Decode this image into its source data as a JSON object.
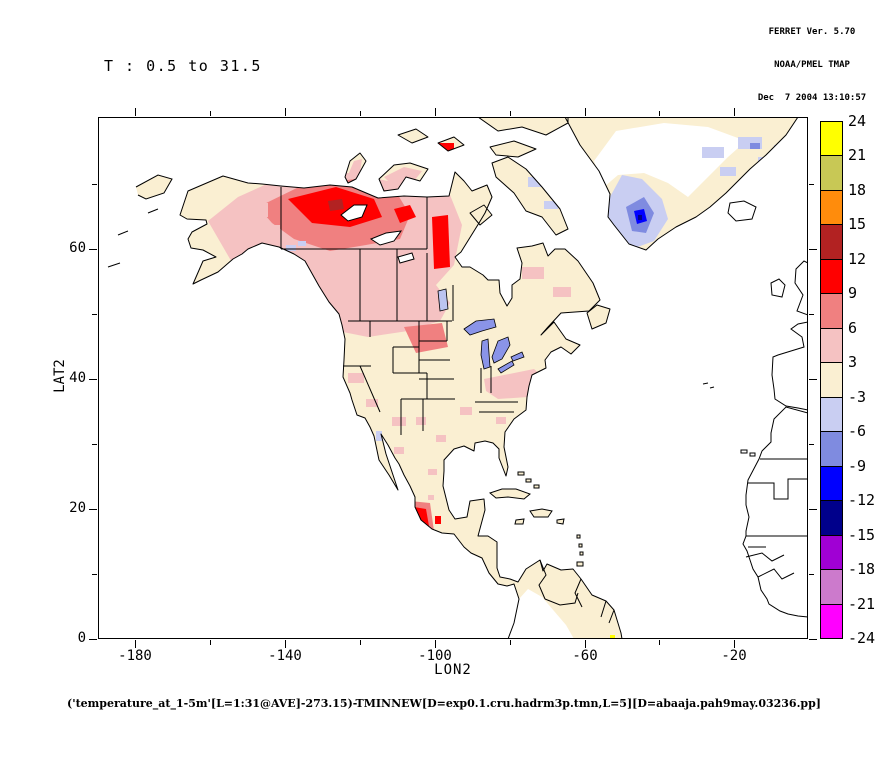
{
  "header": {
    "line1": "FERRET Ver. 5.70",
    "line2": "NOAA/PMEL TMAP",
    "line3": "Dec  7 2004 13:10:57"
  },
  "title": "T : 0.5 to 31.5",
  "axes": {
    "x_label": "LON2",
    "y_label": "LAT2",
    "x_range": [
      -190,
      -0.3
    ],
    "y_range": [
      0,
      80.3
    ],
    "x_major": [
      {
        "v": -180,
        "label": "-180"
      },
      {
        "v": -140,
        "label": "-140"
      },
      {
        "v": -100,
        "label": "-100"
      },
      {
        "v": -60,
        "label": "-60"
      },
      {
        "v": -20,
        "label": "-20"
      }
    ],
    "x_minor": [
      -160,
      -120,
      -80,
      -40
    ],
    "y_major": [
      {
        "v": 60,
        "label": "60"
      },
      {
        "v": 40,
        "label": "40"
      },
      {
        "v": 20,
        "label": "20"
      },
      {
        "v": 0,
        "label": "0"
      }
    ],
    "y_minor": [
      10,
      30,
      50,
      70
    ]
  },
  "colorbar": {
    "labels": [
      "24",
      "21",
      "18",
      "15",
      "12",
      "9",
      "6",
      "3",
      "-3",
      "-6",
      "-9",
      "-12",
      "-15",
      "-18",
      "-21",
      "-24"
    ],
    "colors": [
      "#FFFF00",
      "#C8C855",
      "#FF8C0C",
      "#B22222",
      "#FF0000",
      "#F08080",
      "#F5C2C2",
      "#FAEFD2",
      "#C9CEF2",
      "#7F8BE0",
      "#0000FF",
      "#00008B",
      "#A000D4",
      "#CC7ACC",
      "#FF00FF"
    ]
  },
  "caption": "('temperature_at_1-5m'[L=1:31@AVE]-273.15)-TMINNEW[D=exp0.1.cru.hadrm3p.tmn,L=5][D=abaaja.pah9may.03236.pp]",
  "colors": {
    "land_no_anomaly": "#FAEFD2",
    "ocean_no_data": "#FFFFFF",
    "lakes": "#8A94E8",
    "warm_3_6": "#F5C2C2",
    "warm_6_9": "#F08080",
    "warm_9_12": "#FF0000",
    "warm_12_15": "#B22222",
    "cold_3_6": "#C9CEF2",
    "cold_6_9": "#7F8BE0",
    "cold_9_12": "#0000FF",
    "cold_12_15": "#00008B"
  },
  "chart_data": {
    "type": "heatmap",
    "title": "T : 0.5 to 31.5",
    "xlabel": "LON2",
    "ylabel": "LAT2",
    "xlim": [
      -190,
      0
    ],
    "ylim": [
      0,
      80
    ],
    "x_ticks": [
      -180,
      -140,
      -100,
      -60,
      -20
    ],
    "y_ticks": [
      0,
      20,
      40,
      60
    ],
    "legend_position": "right colorbar",
    "colorbar_levels": [
      -24,
      -21,
      -18,
      -15,
      -12,
      -9,
      -6,
      -3,
      3,
      6,
      9,
      12,
      15,
      18,
      21,
      24
    ],
    "colorbar_colors_bottom_to_top": [
      "#FF00FF",
      "#CC7ACC",
      "#A000D4",
      "#00008B",
      "#0000FF",
      "#7F8BE0",
      "#C9CEF2",
      "#FAEFD2",
      "#F5C2C2",
      "#F08080",
      "#FF0000",
      "#B22222",
      "#FF8C0C",
      "#C8C855",
      "#FFFF00"
    ],
    "regions": [
      {
        "region": "Northwest Territories around Great Bear Lake, Canada",
        "approx_value": "+9 to +12"
      },
      {
        "region": "Red streak into Saskatchewan/Manitoba (~103W, 47-56N)",
        "approx_value": "+9 to +12"
      },
      {
        "region": "Western and central Canada broad area",
        "approx_value": "+3 to +9"
      },
      {
        "region": "Canadian Arctic islands",
        "approx_value": "0 to +6 with scattered -3 to -6"
      },
      {
        "region": "Alaska interior",
        "approx_value": "0 to +6"
      },
      {
        "region": "Contiguous United States",
        "approx_value": "0 to +3 with scattered +3 to +6"
      },
      {
        "region": "Northern Plains (SD/WY)",
        "approx_value": "+6 to +9"
      },
      {
        "region": "Southwest Mexico coastal hotspot",
        "approx_value": "+9 to +12"
      },
      {
        "region": "Southern Greenland",
        "approx_value": "-3 to -12"
      },
      {
        "region": "Northeast Greenland / NE Atlantic patches",
        "approx_value": "-3 to -9"
      },
      {
        "region": "Oceans, Hudson Bay, Europe, Africa interior",
        "approx_value": "no data (white)"
      }
    ]
  }
}
